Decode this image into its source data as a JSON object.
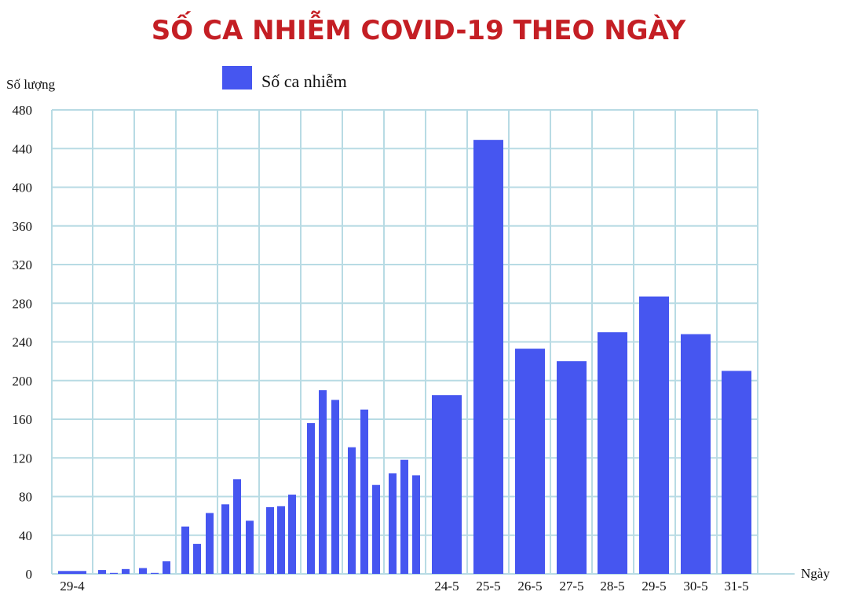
{
  "chart_data": {
    "type": "bar",
    "title": "SỐ CA NHIỄM COVID-19 THEO NGÀY",
    "ylabel": "Số lượng",
    "xlabel": "Ngày",
    "ylim": [
      0,
      480
    ],
    "y_ticks": [
      0,
      40,
      80,
      120,
      160,
      200,
      240,
      280,
      320,
      360,
      400,
      440,
      480
    ],
    "grid": true,
    "legend_position": "top",
    "bar_color": "#4656f0",
    "grid_color": "#b8dbe4",
    "title_color": "#c41e24",
    "series": [
      {
        "name": "Số ca nhiễm",
        "values": [
          3,
          3,
          4,
          1,
          5,
          6,
          1,
          13,
          49,
          31,
          63,
          72,
          98,
          55,
          69,
          70,
          82,
          156,
          190,
          180,
          131,
          170,
          92,
          104,
          118,
          102,
          185,
          449,
          233,
          220,
          250,
          287,
          248,
          210
        ]
      }
    ],
    "x_labels": [
      {
        "index": 0,
        "text": "29-4"
      },
      {
        "index": 26,
        "text": "24-5"
      },
      {
        "index": 27,
        "text": "25-5"
      },
      {
        "index": 28,
        "text": "26-5"
      },
      {
        "index": 29,
        "text": "27-5"
      },
      {
        "index": 30,
        "text": "28-5"
      },
      {
        "index": 31,
        "text": "29-5"
      },
      {
        "index": 32,
        "text": "30-5"
      },
      {
        "index": 33,
        "text": "31-5"
      }
    ]
  }
}
